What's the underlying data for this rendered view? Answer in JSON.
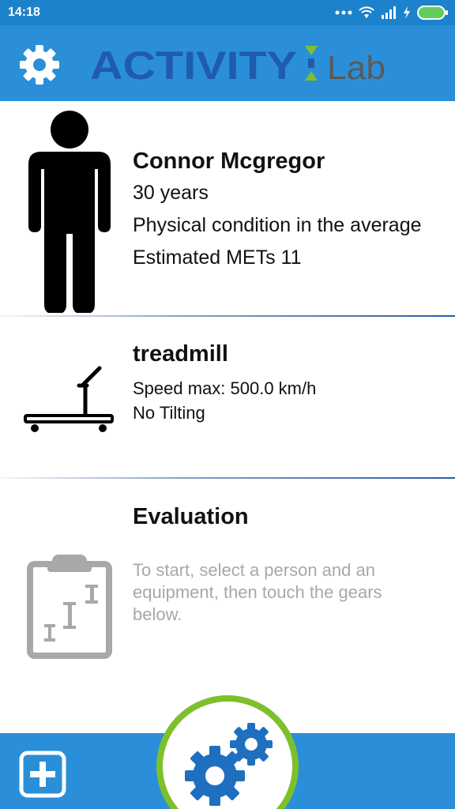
{
  "status_bar": {
    "time": "14:18",
    "icons": [
      "more-dots-icon",
      "wifi-icon",
      "signal-icon",
      "charging-icon",
      "battery-icon"
    ]
  },
  "app_bar": {
    "settings_icon": "gear-icon",
    "logo_main": "ACTIVITY",
    "logo_sub": "Lab"
  },
  "person": {
    "name": "Connor Mcgregor",
    "age": "30 years",
    "condition": "Physical condition in the average",
    "mets": "Estimated METs 11",
    "icon": "person-icon"
  },
  "equipment": {
    "name": "treadmill",
    "speed": "Speed max: 500.0 km/h",
    "tilt": "No Tilting",
    "icon": "treadmill-icon"
  },
  "evaluation": {
    "title": "Evaluation",
    "hint": "To start, select a person and an equipment, then touch the gears below.",
    "icon": "clipboard-chart-icon"
  },
  "bottom_bar": {
    "add_icon": "add-icon",
    "run_icon": "gears-icon"
  },
  "colors": {
    "primary": "#2a8fd8",
    "status_bar": "#1d82cc",
    "logo_blue": "#1f5cad",
    "logo_green": "#7ec02c",
    "hint_gray": "#a8a8a8",
    "gear_blue": "#1f6fc0"
  }
}
